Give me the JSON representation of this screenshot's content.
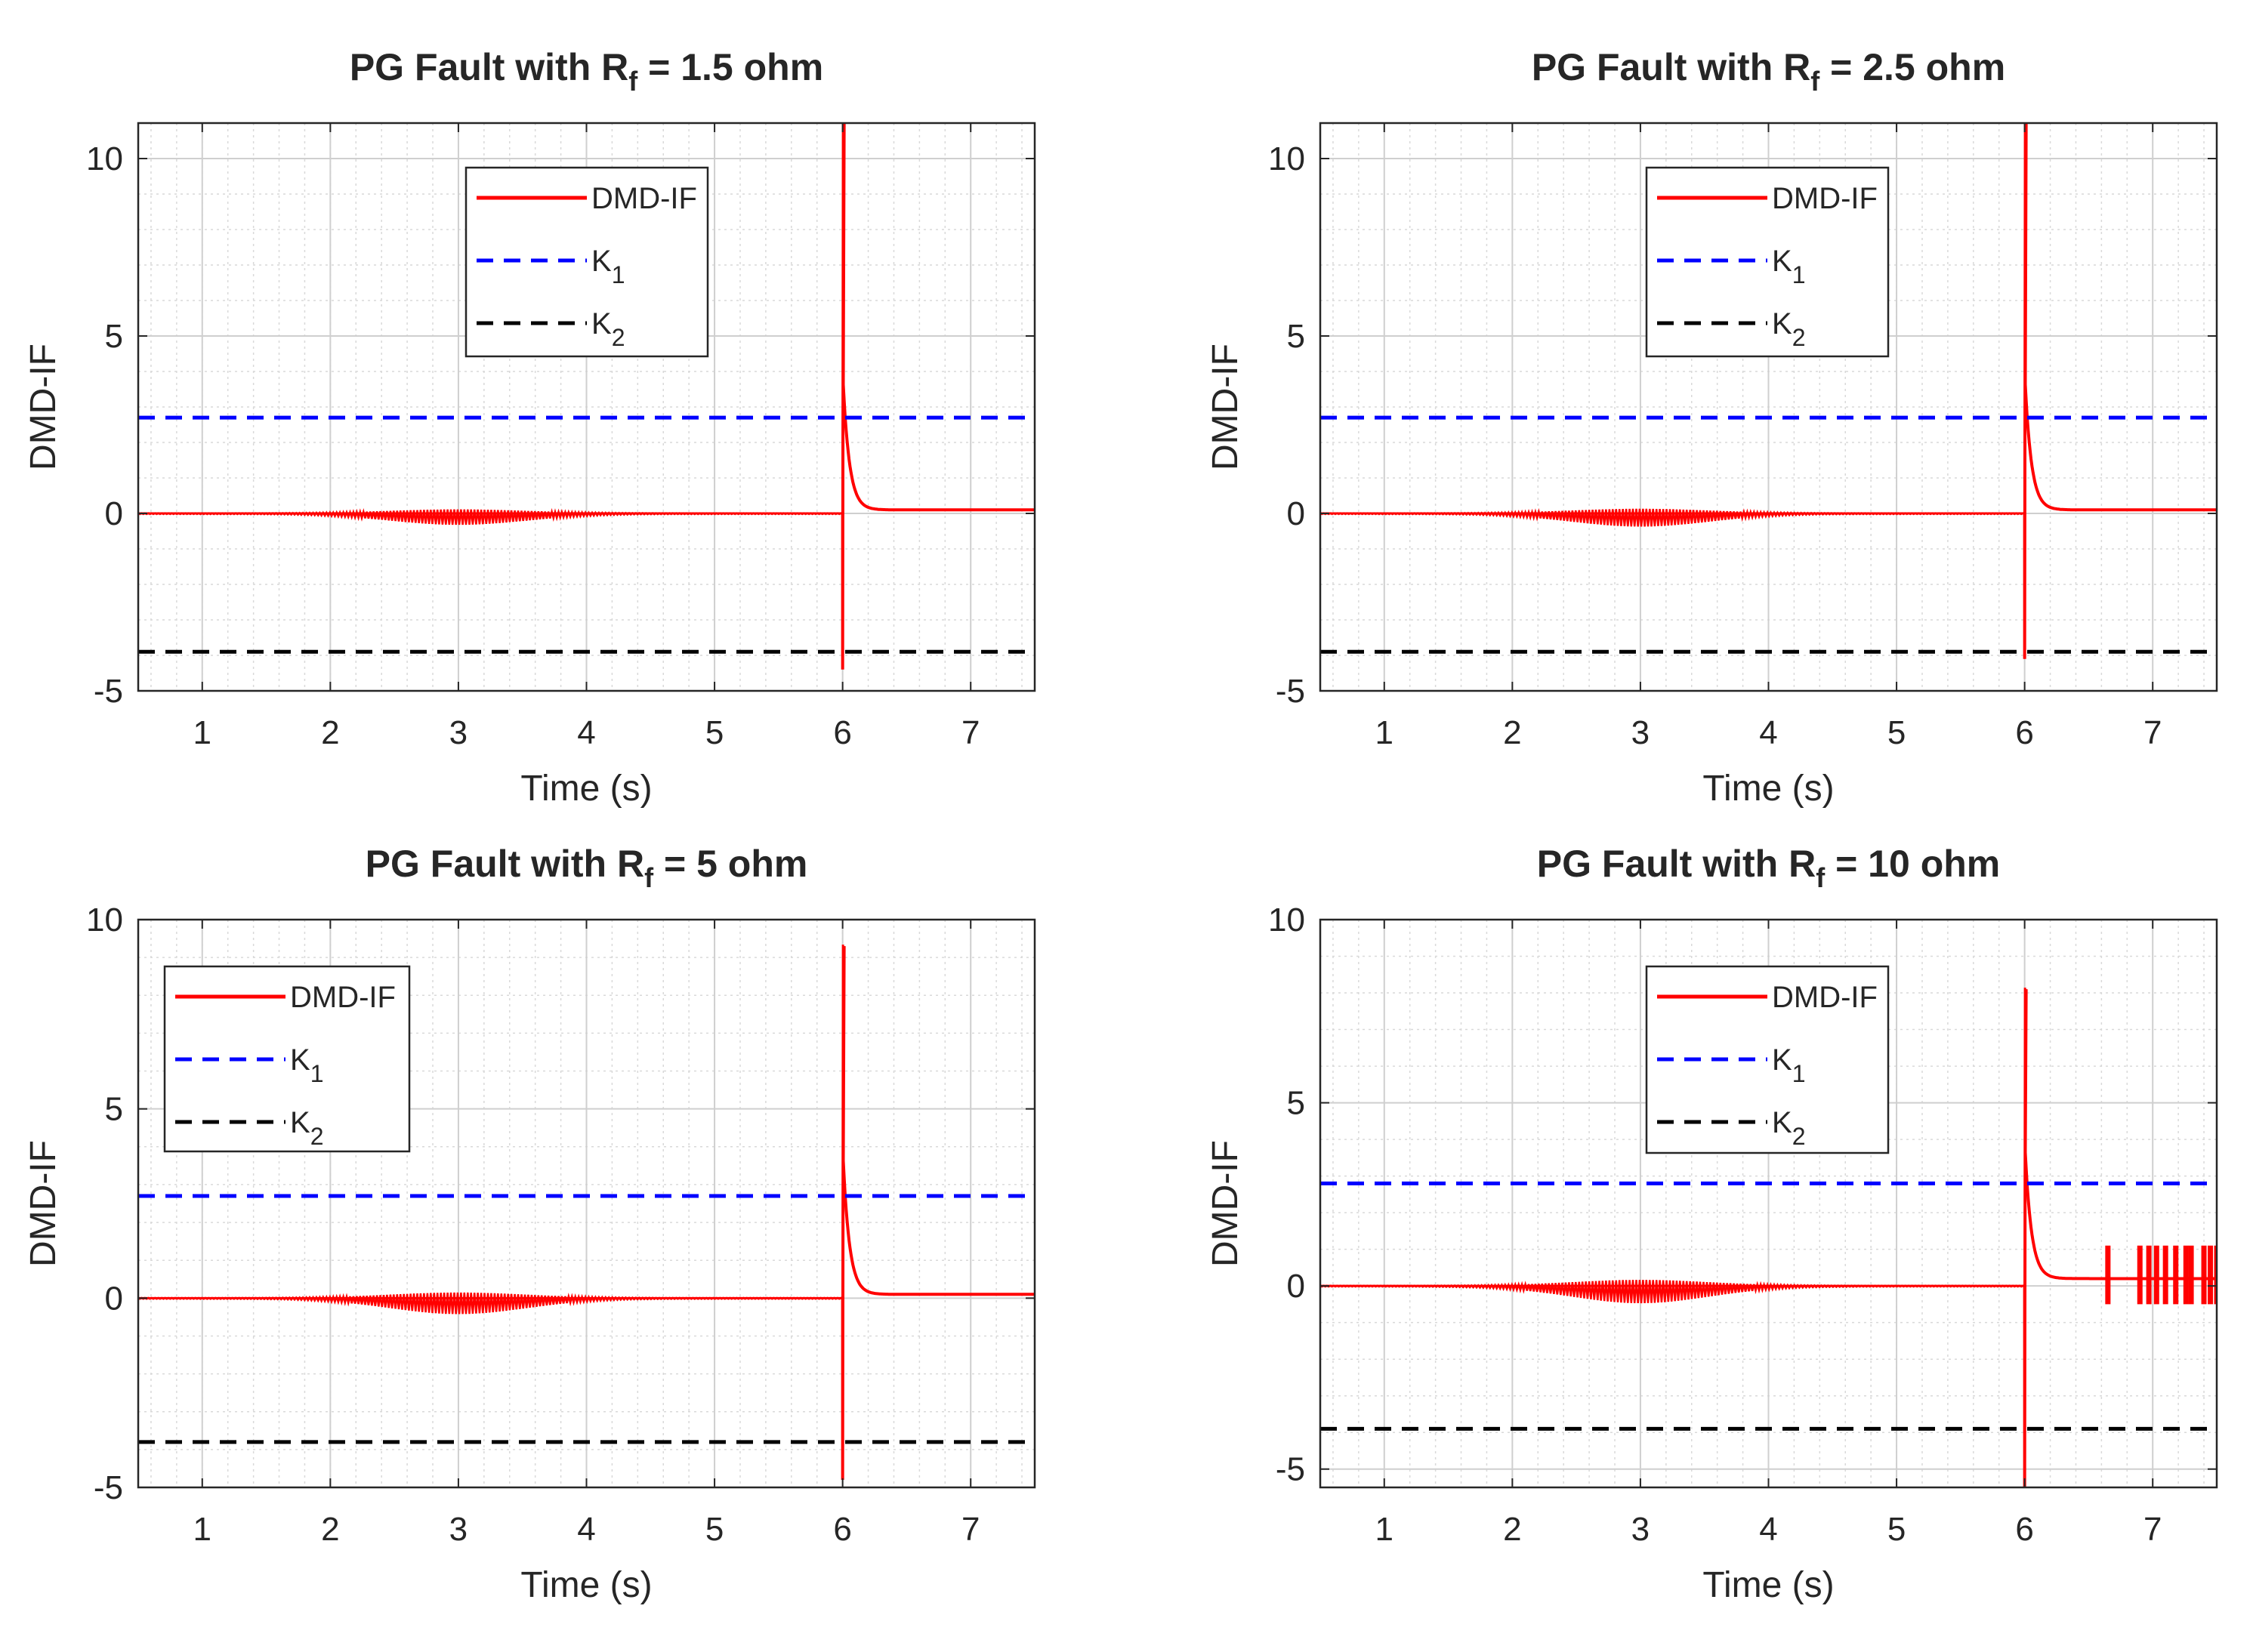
{
  "chart_data": [
    {
      "type": "line",
      "title": {
        "prefix": "PG Fault with R",
        "subscript": "f",
        "suffix": " = 1.5 ohm"
      },
      "xlabel": "Time (s)",
      "ylabel": "DMD-IF",
      "xlim": [
        0.5,
        7.5
      ],
      "ylim": [
        -5,
        11
      ],
      "xticks": [
        1,
        2,
        3,
        4,
        5,
        6,
        7
      ],
      "yticks": [
        -5,
        0,
        5,
        10
      ],
      "grid": true,
      "minor_grid": true,
      "legend_position": "top-center",
      "series": [
        {
          "name": "DMD-IF",
          "base": "DMD-IF",
          "sub": "",
          "color": "#ff0000",
          "style": "solid",
          "fault_time": 6.0,
          "peak": 11.0,
          "trough": -4.4,
          "settle": 0.1,
          "oscillation_center": 3.0,
          "oscillation_amplitude": 0.3,
          "chatter": []
        },
        {
          "name": "K1",
          "base": "K",
          "sub": "1",
          "color": "#0000ff",
          "style": "dashed",
          "value": 2.7
        },
        {
          "name": "K2",
          "base": "K",
          "sub": "2",
          "color": "#000000",
          "style": "dashed",
          "value": -3.9
        }
      ]
    },
    {
      "type": "line",
      "title": {
        "prefix": "PG Fault with R",
        "subscript": "f",
        "suffix": " = 2.5 ohm"
      },
      "xlabel": "Time (s)",
      "ylabel": "DMD-IF",
      "xlim": [
        0.5,
        7.5
      ],
      "ylim": [
        -5,
        11
      ],
      "xticks": [
        1,
        2,
        3,
        4,
        5,
        6,
        7
      ],
      "yticks": [
        -5,
        0,
        5,
        10
      ],
      "grid": true,
      "minor_grid": true,
      "legend_position": "top-center",
      "series": [
        {
          "name": "DMD-IF",
          "base": "DMD-IF",
          "sub": "",
          "color": "#ff0000",
          "style": "solid",
          "fault_time": 6.0,
          "peak": 11.0,
          "trough": -4.1,
          "settle": 0.1,
          "oscillation_center": 3.0,
          "oscillation_amplitude": 0.35,
          "chatter": []
        },
        {
          "name": "K1",
          "base": "K",
          "sub": "1",
          "color": "#0000ff",
          "style": "dashed",
          "value": 2.7
        },
        {
          "name": "K2",
          "base": "K",
          "sub": "2",
          "color": "#000000",
          "style": "dashed",
          "value": -3.9
        }
      ]
    },
    {
      "type": "line",
      "title": {
        "prefix": "PG Fault with R",
        "subscript": "f",
        "suffix": " = 5 ohm"
      },
      "xlabel": "Time (s)",
      "ylabel": "DMD-IF",
      "xlim": [
        0.5,
        7.5
      ],
      "ylim": [
        -5,
        10
      ],
      "xticks": [
        1,
        2,
        3,
        4,
        5,
        6,
        7
      ],
      "yticks": [
        -5,
        0,
        5,
        10
      ],
      "grid": true,
      "minor_grid": true,
      "legend_position": "top-left",
      "series": [
        {
          "name": "DMD-IF",
          "base": "DMD-IF",
          "sub": "",
          "color": "#ff0000",
          "style": "solid",
          "fault_time": 6.0,
          "peak": 9.3,
          "trough": -4.8,
          "settle": 0.1,
          "oscillation_center": 3.0,
          "oscillation_amplitude": 0.4,
          "chatter": []
        },
        {
          "name": "K1",
          "base": "K",
          "sub": "1",
          "color": "#0000ff",
          "style": "dashed",
          "value": 2.7
        },
        {
          "name": "K2",
          "base": "K",
          "sub": "2",
          "color": "#000000",
          "style": "dashed",
          "value": -3.8
        }
      ]
    },
    {
      "type": "line",
      "title": {
        "prefix": "PG Fault with R",
        "subscript": "f",
        "suffix": " = 10 ohm"
      },
      "xlabel": "Time (s)",
      "ylabel": "DMD-IF",
      "xlim": [
        0.5,
        7.5
      ],
      "ylim": [
        -5.5,
        10
      ],
      "xticks": [
        1,
        2,
        3,
        4,
        5,
        6,
        7
      ],
      "yticks": [
        -5,
        0,
        5,
        10
      ],
      "grid": true,
      "minor_grid": true,
      "legend_position": "top-center",
      "series": [
        {
          "name": "DMD-IF",
          "base": "DMD-IF",
          "sub": "",
          "color": "#ff0000",
          "style": "solid",
          "fault_time": 6.0,
          "peak": 8.1,
          "trough": -5.5,
          "settle": 0.2,
          "oscillation_center": 3.0,
          "oscillation_amplitude": 0.45,
          "chatter": [
            6.65,
            6.9,
            6.97,
            7.03,
            7.1,
            7.18,
            7.26,
            7.3,
            7.4,
            7.45,
            7.5
          ]
        },
        {
          "name": "K1",
          "base": "K",
          "sub": "1",
          "color": "#0000ff",
          "style": "dashed",
          "value": 2.8
        },
        {
          "name": "K2",
          "base": "K",
          "sub": "2",
          "color": "#000000",
          "style": "dashed",
          "value": -3.9
        }
      ]
    }
  ]
}
